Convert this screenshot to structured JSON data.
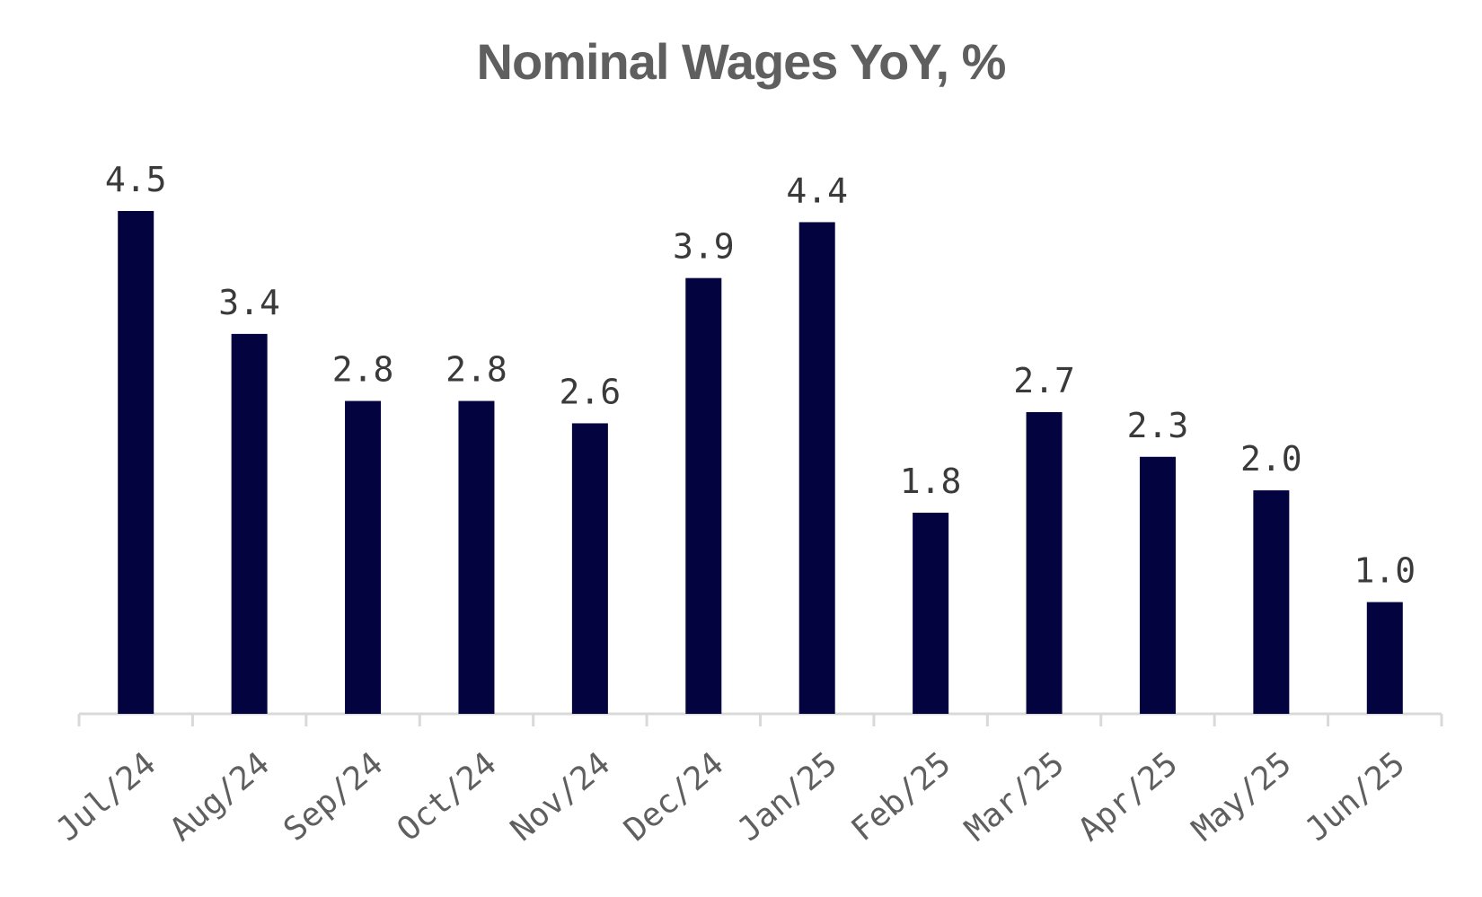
{
  "chart_data": {
    "type": "bar",
    "title": "Nominal Wages YoY, %",
    "xlabel": "",
    "ylabel": "",
    "categories": [
      "Jul/24",
      "Aug/24",
      "Sep/24",
      "Oct/24",
      "Nov/24",
      "Dec/24",
      "Jan/25",
      "Feb/25",
      "Mar/25",
      "Apr/25",
      "May/25",
      "Jun/25"
    ],
    "values": [
      4.5,
      3.4,
      2.8,
      2.8,
      2.6,
      3.9,
      4.4,
      1.8,
      2.7,
      2.3,
      2.0,
      1.0
    ],
    "value_labels": [
      "4.5",
      "3.4",
      "2.8",
      "2.8",
      "2.6",
      "3.9",
      "4.4",
      "1.8",
      "2.7",
      "2.3",
      "2.0",
      "1.0"
    ],
    "ylim": [
      0,
      4.5
    ],
    "grid": false,
    "legend": "none",
    "colors": {
      "bar": "#03033f",
      "axis": "#d9d9d9",
      "title": "#5f5f5f",
      "label": "#3a3a3a",
      "tick": "#5f5f5f"
    }
  }
}
